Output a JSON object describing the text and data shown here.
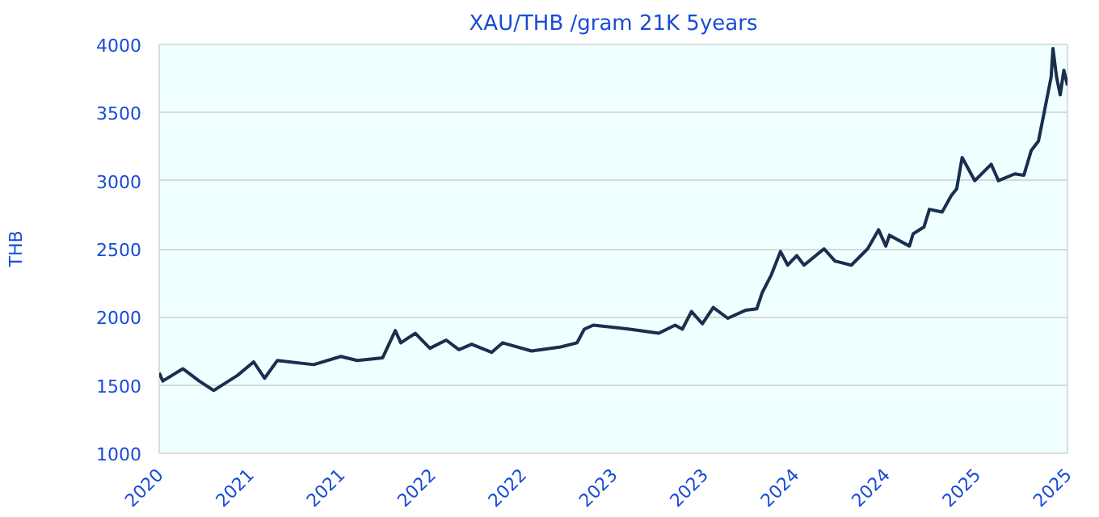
{
  "chart_data": {
    "type": "line",
    "title": "XAU/THB /gram 21K 5years",
    "ylabel": "THB",
    "x": [
      2020.4,
      2020.42,
      2020.53,
      2020.62,
      2020.7,
      2020.83,
      2020.92,
      2020.98,
      2021.05,
      2021.25,
      2021.4,
      2021.49,
      2021.63,
      2021.7,
      2021.73,
      2021.81,
      2021.89,
      2021.98,
      2022.05,
      2022.12,
      2022.23,
      2022.29,
      2022.45,
      2022.61,
      2022.7,
      2022.74,
      2022.79,
      2022.99,
      2023.15,
      2023.24,
      2023.28,
      2023.33,
      2023.39,
      2023.45,
      2023.53,
      2023.63,
      2023.69,
      2023.72,
      2023.77,
      2023.82,
      2023.86,
      2023.91,
      2023.95,
      2024.06,
      2024.12,
      2024.21,
      2024.3,
      2024.36,
      2024.4,
      2024.42,
      2024.53,
      2024.55,
      2024.61,
      2024.64,
      2024.71,
      2024.76,
      2024.79,
      2024.82,
      2024.89,
      2024.98,
      2025.02,
      2025.11,
      2025.16,
      2025.2,
      2025.24,
      2025.27,
      2025.31,
      2025.32,
      2025.34,
      2025.36,
      2025.38,
      2025.4
    ],
    "series": [
      {
        "color": "#1a2e4f",
        "values": [
          1590,
          1530,
          1620,
          1530,
          1460,
          1570,
          1670,
          1550,
          1680,
          1650,
          1710,
          1680,
          1700,
          1900,
          1810,
          1880,
          1770,
          1830,
          1760,
          1800,
          1740,
          1810,
          1750,
          1780,
          1810,
          1910,
          1940,
          1910,
          1880,
          1940,
          1910,
          2040,
          1950,
          2070,
          1990,
          2050,
          2060,
          2180,
          2310,
          2480,
          2380,
          2450,
          2380,
          2500,
          2410,
          2380,
          2500,
          2640,
          2520,
          2600,
          2520,
          2610,
          2660,
          2790,
          2770,
          2890,
          2940,
          3170,
          3000,
          3120,
          3000,
          3050,
          3040,
          3220,
          3290,
          3490,
          3760,
          3970,
          3760,
          3630,
          3810,
          3700
        ]
      }
    ],
    "xlim": [
      2020.4,
      2025.4
    ],
    "xticks": [
      {
        "value": 2020.4,
        "label": "2020"
      },
      {
        "value": 2020.9,
        "label": "2021"
      },
      {
        "value": 2021.4,
        "label": "2021"
      },
      {
        "value": 2021.9,
        "label": "2022"
      },
      {
        "value": 2022.4,
        "label": "2022"
      },
      {
        "value": 2022.9,
        "label": "2023"
      },
      {
        "value": 2023.4,
        "label": "2023"
      },
      {
        "value": 2023.9,
        "label": "2024"
      },
      {
        "value": 2024.4,
        "label": "2024"
      },
      {
        "value": 2024.9,
        "label": "2025"
      },
      {
        "value": 2025.4,
        "label": "2025"
      }
    ],
    "ylim": [
      1000,
      4000
    ],
    "yticks": [
      1000,
      1500,
      2000,
      2500,
      3000,
      3500,
      4000
    ],
    "grid": "y",
    "marker": "none",
    "line_style": "solid"
  }
}
